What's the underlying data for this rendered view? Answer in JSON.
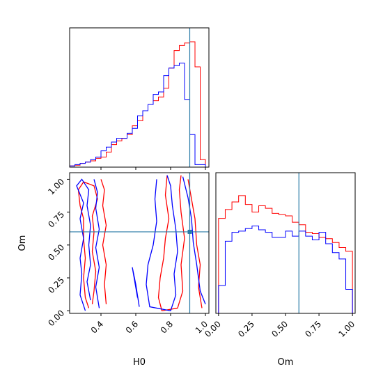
{
  "chart_data": {
    "type": "corner",
    "parameters": [
      "H0",
      "Om"
    ],
    "truth": {
      "H0": 0.91,
      "Om": 0.6
    },
    "colors": {
      "series_a": "#ff0000",
      "series_b": "#0000ff",
      "truth": "#2a7ba8"
    },
    "panels": [
      {
        "id": "hist-H0",
        "type": "step-histogram",
        "xlim": [
          0.22,
          1.02
        ],
        "bin_edges": [
          0.22,
          0.25,
          0.28,
          0.31,
          0.34,
          0.37,
          0.4,
          0.43,
          0.46,
          0.49,
          0.52,
          0.55,
          0.58,
          0.61,
          0.64,
          0.67,
          0.7,
          0.73,
          0.76,
          0.79,
          0.82,
          0.85,
          0.88,
          0.91,
          0.94,
          0.97,
          1.0
        ],
        "series": [
          {
            "key": "series_a",
            "values": [
              0.01,
              0.015,
              0.03,
              0.04,
              0.05,
              0.07,
              0.08,
              0.12,
              0.18,
              0.21,
              0.23,
              0.26,
              0.33,
              0.37,
              0.45,
              0.5,
              0.53,
              0.56,
              0.63,
              0.79,
              0.93,
              0.97,
              0.99,
              1.0,
              0.8,
              0.06
            ]
          },
          {
            "key": "series_b",
            "values": [
              0.01,
              0.02,
              0.03,
              0.04,
              0.06,
              0.08,
              0.13,
              0.16,
              0.2,
              0.23,
              0.23,
              0.27,
              0.31,
              0.41,
              0.45,
              0.5,
              0.58,
              0.6,
              0.73,
              0.79,
              0.81,
              0.83,
              0.54,
              0.26,
              0.02,
              0.02
            ]
          }
        ]
      },
      {
        "id": "hist-Om",
        "type": "step-histogram",
        "xlim": [
          -0.02,
          1.02
        ],
        "bin_edges": [
          0.0,
          0.05,
          0.1,
          0.15,
          0.2,
          0.25,
          0.3,
          0.35,
          0.4,
          0.45,
          0.5,
          0.55,
          0.6,
          0.65,
          0.7,
          0.75,
          0.8,
          0.85,
          0.9,
          0.95,
          1.0
        ],
        "series": [
          {
            "key": "series_a",
            "values": [
              0.75,
              0.82,
              0.88,
              0.93,
              0.86,
              0.8,
              0.85,
              0.83,
              0.79,
              0.78,
              0.77,
              0.72,
              0.7,
              0.64,
              0.63,
              0.6,
              0.59,
              0.56,
              0.52,
              0.49
            ]
          },
          {
            "key": "series_b",
            "values": [
              0.22,
              0.57,
              0.64,
              0.65,
              0.67,
              0.69,
              0.66,
              0.64,
              0.6,
              0.6,
              0.65,
              0.61,
              0.65,
              0.61,
              0.58,
              0.64,
              0.55,
              0.48,
              0.43,
              0.19
            ]
          }
        ]
      },
      {
        "id": "scatter-H0-Om",
        "type": "2d-contour",
        "xlim": [
          0.22,
          1.02
        ],
        "ylim": [
          -0.02,
          1.05
        ],
        "series": [
          {
            "key": "series_a",
            "contours": [
              [
                [
                  0.33,
                  0.02
                ],
                [
                  0.31,
                  0.1
                ],
                [
                  0.3,
                  0.25
                ],
                [
                  0.31,
                  0.4
                ],
                [
                  0.3,
                  0.55
                ],
                [
                  0.3,
                  0.7
                ],
                [
                  0.28,
                  0.8
                ],
                [
                  0.27,
                  0.92
                ],
                [
                  0.3,
                  0.98
                ],
                [
                  0.36,
                  0.95
                ],
                [
                  0.38,
                  0.85
                ],
                [
                  0.35,
                  0.72
                ],
                [
                  0.36,
                  0.6
                ],
                [
                  0.35,
                  0.45
                ],
                [
                  0.37,
                  0.3
                ],
                [
                  0.36,
                  0.15
                ],
                [
                  0.35,
                  0.05
                ]
              ],
              [
                [
                  0.4,
                  1.0
                ],
                [
                  0.42,
                  0.92
                ],
                [
                  0.41,
                  0.8
                ],
                [
                  0.43,
                  0.65
                ],
                [
                  0.41,
                  0.5
                ],
                [
                  0.43,
                  0.35
                ],
                [
                  0.42,
                  0.2
                ],
                [
                  0.43,
                  0.05
                ]
              ],
              [
                [
                  0.78,
                  1.03
                ],
                [
                  0.77,
                  0.88
                ],
                [
                  0.79,
                  0.7
                ],
                [
                  0.77,
                  0.55
                ],
                [
                  0.76,
                  0.4
                ],
                [
                  0.74,
                  0.25
                ],
                [
                  0.73,
                  0.1
                ],
                [
                  0.75,
                  0.0
                ],
                [
                  0.84,
                  0.02
                ],
                [
                  0.87,
                  0.15
                ],
                [
                  0.86,
                  0.35
                ],
                [
                  0.88,
                  0.55
                ],
                [
                  0.86,
                  0.75
                ],
                [
                  0.85,
                  0.92
                ],
                [
                  0.86,
                  1.03
                ]
              ],
              [
                [
                  0.9,
                  1.0
                ],
                [
                  0.92,
                  0.85
                ],
                [
                  0.94,
                  0.7
                ],
                [
                  0.95,
                  0.5
                ],
                [
                  0.97,
                  0.35
                ],
                [
                  0.96,
                  0.18
                ],
                [
                  0.98,
                  0.02
                ]
              ]
            ]
          },
          {
            "key": "series_b",
            "contours": [
              [
                [
                  0.31,
                  0.0
                ],
                [
                  0.28,
                  0.12
                ],
                [
                  0.29,
                  0.28
                ],
                [
                  0.28,
                  0.4
                ],
                [
                  0.3,
                  0.55
                ],
                [
                  0.28,
                  0.7
                ],
                [
                  0.3,
                  0.82
                ],
                [
                  0.26,
                  0.95
                ],
                [
                  0.29,
                  1.0
                ],
                [
                  0.33,
                  0.92
                ],
                [
                  0.32,
                  0.8
                ],
                [
                  0.34,
                  0.65
                ],
                [
                  0.33,
                  0.5
                ],
                [
                  0.34,
                  0.35
                ],
                [
                  0.32,
                  0.22
                ],
                [
                  0.34,
                  0.08
                ]
              ],
              [
                [
                  0.36,
                  1.0
                ],
                [
                  0.38,
                  0.9
                ],
                [
                  0.37,
                  0.78
                ],
                [
                  0.39,
                  0.62
                ],
                [
                  0.37,
                  0.48
                ],
                [
                  0.39,
                  0.33
                ],
                [
                  0.37,
                  0.18
                ],
                [
                  0.39,
                  0.02
                ]
              ],
              [
                [
                  0.72,
                  1.0
                ],
                [
                  0.71,
                  0.85
                ],
                [
                  0.72,
                  0.68
                ],
                [
                  0.7,
                  0.5
                ],
                [
                  0.67,
                  0.35
                ],
                [
                  0.66,
                  0.2
                ],
                [
                  0.68,
                  0.03
                ],
                [
                  0.8,
                  0.0
                ],
                [
                  0.83,
                  0.12
                ],
                [
                  0.82,
                  0.28
                ],
                [
                  0.84,
                  0.45
                ],
                [
                  0.83,
                  0.62
                ],
                [
                  0.81,
                  0.8
                ],
                [
                  0.8,
                  0.95
                ],
                [
                  0.78,
                  1.03
                ]
              ],
              [
                [
                  0.62,
                  0.03
                ],
                [
                  0.6,
                  0.2
                ],
                [
                  0.58,
                  0.33
                ],
                [
                  0.61,
                  0.1
                ]
              ],
              [
                [
                  0.87,
                  1.02
                ],
                [
                  0.9,
                  0.86
                ],
                [
                  0.92,
                  0.7
                ],
                [
                  0.93,
                  0.52
                ],
                [
                  0.95,
                  0.35
                ],
                [
                  0.97,
                  0.15
                ],
                [
                  1.0,
                  0.05
                ]
              ]
            ]
          }
        ]
      }
    ],
    "axes": {
      "H0": {
        "label": "H0",
        "ticks": [
          0.4,
          0.6,
          0.8,
          1.0
        ],
        "tick_labels": [
          "0.4",
          "0.6",
          "0.8",
          "1.0"
        ]
      },
      "Om": {
        "label": "Om",
        "ticks": [
          0.0,
          0.25,
          0.5,
          0.75,
          1.0
        ],
        "tick_labels": [
          "0.00",
          "0.25",
          "0.50",
          "0.75",
          "1.00"
        ]
      }
    }
  }
}
